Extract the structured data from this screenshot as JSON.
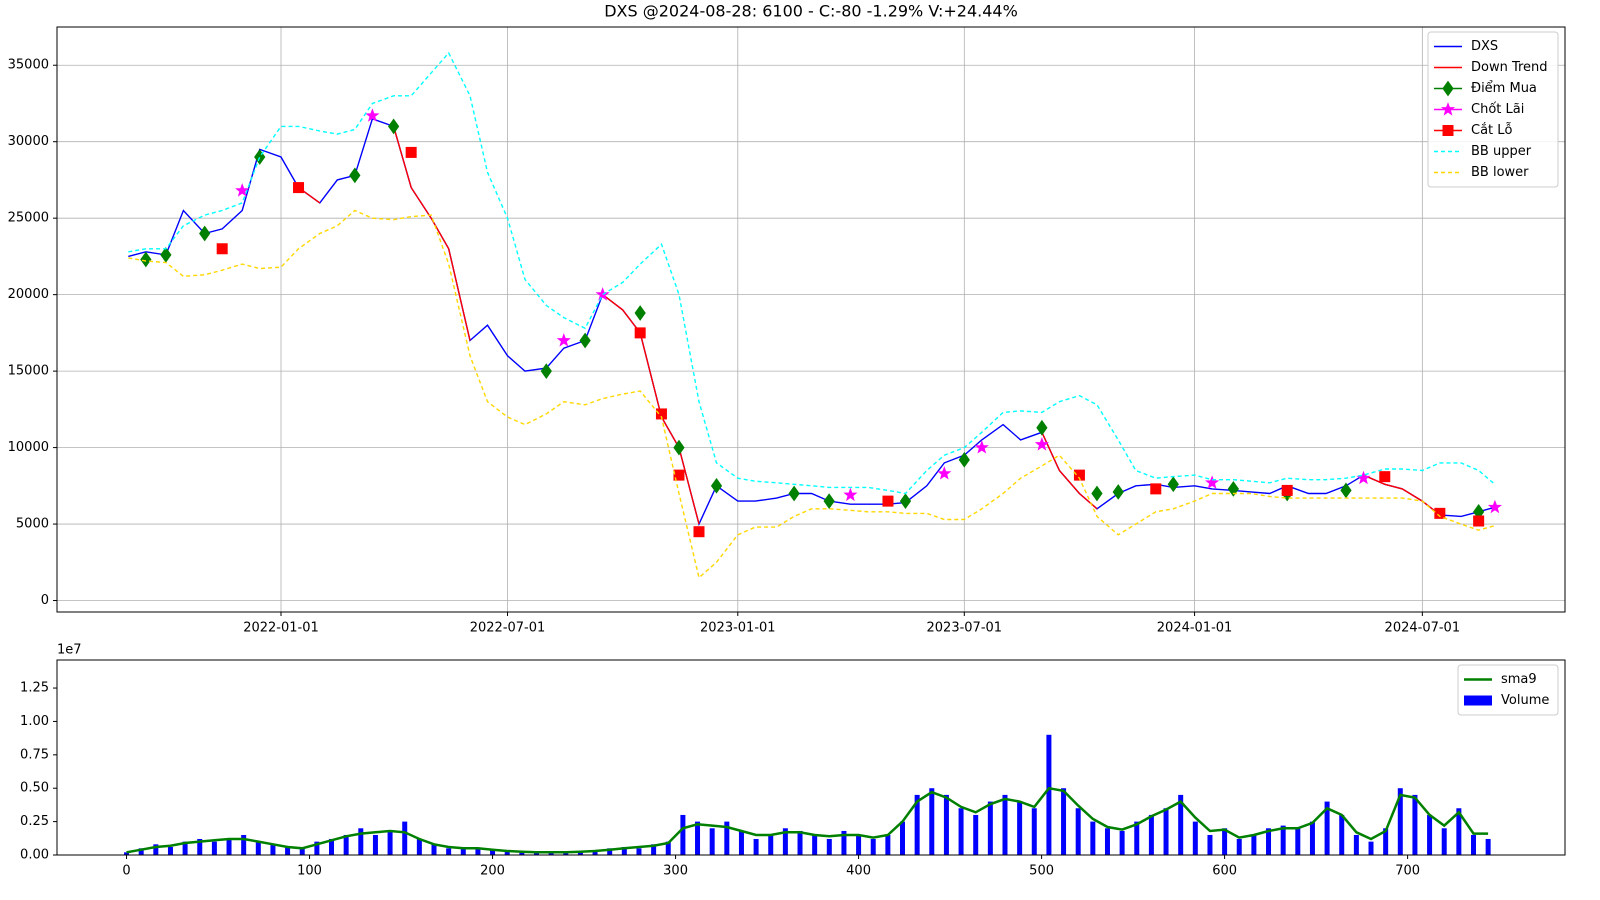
{
  "chart_data": [
    {
      "type": "line",
      "title": "DXS @2024-08-28: 6100 - C:-80 -1.29% V:+24.44%",
      "grid": true,
      "legend": "upper right",
      "xlim": [
        "2021-07-06",
        "2024-10-23"
      ],
      "xticks": [
        "2022-01-01",
        "2022-07-01",
        "2023-01-01",
        "2023-07-01",
        "2024-01-01",
        "2024-07-01"
      ],
      "ylim": [
        -750,
        37500
      ],
      "yticks": [
        0,
        5000,
        10000,
        15000,
        20000,
        25000,
        30000,
        35000
      ],
      "x": [
        "2021-09-01",
        "2021-09-15",
        "2021-10-01",
        "2021-10-15",
        "2021-11-01",
        "2021-11-15",
        "2021-12-01",
        "2021-12-15",
        "2022-01-01",
        "2022-01-15",
        "2022-02-01",
        "2022-02-15",
        "2022-03-01",
        "2022-03-15",
        "2022-04-01",
        "2022-04-15",
        "2022-05-01",
        "2022-05-15",
        "2022-06-01",
        "2022-06-15",
        "2022-07-01",
        "2022-07-15",
        "2022-08-01",
        "2022-08-15",
        "2022-09-01",
        "2022-09-15",
        "2022-10-01",
        "2022-10-15",
        "2022-11-01",
        "2022-11-15",
        "2022-12-01",
        "2022-12-15",
        "2023-01-01",
        "2023-01-15",
        "2023-02-01",
        "2023-02-15",
        "2023-03-01",
        "2023-03-15",
        "2023-04-01",
        "2023-04-15",
        "2023-05-01",
        "2023-05-15",
        "2023-06-01",
        "2023-06-15",
        "2023-07-01",
        "2023-07-15",
        "2023-08-01",
        "2023-08-15",
        "2023-09-01",
        "2023-09-15",
        "2023-10-01",
        "2023-10-15",
        "2023-11-01",
        "2023-11-15",
        "2023-12-01",
        "2023-12-15",
        "2024-01-01",
        "2024-01-15",
        "2024-02-01",
        "2024-02-15",
        "2024-03-01",
        "2024-03-15",
        "2024-04-01",
        "2024-04-15",
        "2024-05-01",
        "2024-05-15",
        "2024-06-01",
        "2024-06-15",
        "2024-07-01",
        "2024-07-15",
        "2024-08-01",
        "2024-08-15",
        "2024-08-28"
      ],
      "series": [
        {
          "name": "DXS",
          "type": "line",
          "color": "#0000ff",
          "linestyle": "solid",
          "values": [
            22500,
            22800,
            22600,
            25500,
            24000,
            24300,
            25500,
            29500,
            29000,
            27000,
            26000,
            27500,
            27800,
            31500,
            31000,
            27000,
            25000,
            23000,
            17000,
            18000,
            16000,
            15000,
            15200,
            16500,
            17000,
            20000,
            19000,
            17500,
            12000,
            10000,
            5000,
            7500,
            6500,
            6500,
            6700,
            7000,
            7000,
            6500,
            6300,
            6300,
            6300,
            6400,
            7500,
            9000,
            9500,
            10500,
            11500,
            10500,
            11000,
            8500,
            7000,
            6000,
            7000,
            7500,
            7600,
            7400,
            7500,
            7300,
            7200,
            7100,
            7000,
            7500,
            7000,
            7000,
            7500,
            8200,
            7600,
            7300,
            6500,
            5600,
            5500,
            5800,
            6100
          ]
        },
        {
          "name": "Down Trend",
          "type": "line",
          "color": "#ff0000",
          "linestyle": "solid",
          "values": [
            null,
            null,
            null,
            null,
            null,
            null,
            null,
            null,
            null,
            27000,
            26000,
            null,
            null,
            null,
            31000,
            27000,
            25000,
            23000,
            17000,
            null,
            null,
            null,
            null,
            null,
            null,
            20000,
            19000,
            17500,
            12000,
            10000,
            5000,
            null,
            null,
            null,
            null,
            null,
            null,
            null,
            null,
            null,
            null,
            null,
            null,
            null,
            null,
            null,
            null,
            null,
            11000,
            8500,
            7000,
            6000,
            null,
            null,
            null,
            null,
            null,
            null,
            null,
            null,
            null,
            null,
            null,
            null,
            null,
            8200,
            7600,
            7300,
            6500,
            5600,
            null,
            null,
            null
          ]
        },
        {
          "name": "Điểm Mua",
          "type": "scatter",
          "color": "#008000",
          "marker": "diamond",
          "x": [
            "2021-09-15",
            "2021-10-01",
            "2021-11-01",
            "2021-12-15",
            "2022-03-01",
            "2022-04-01",
            "2022-08-01",
            "2022-09-01",
            "2022-10-15",
            "2022-11-15",
            "2022-12-15",
            "2023-02-15",
            "2023-03-15",
            "2023-05-15",
            "2023-07-01",
            "2023-09-01",
            "2023-10-15",
            "2023-11-01",
            "2023-12-15",
            "2024-02-01",
            "2024-03-15",
            "2024-05-01",
            "2024-08-15"
          ],
          "values": [
            22300,
            22600,
            24000,
            29000,
            27800,
            31000,
            15000,
            17000,
            18800,
            10000,
            7500,
            7000,
            6500,
            6500,
            9200,
            11300,
            7000,
            7100,
            7600,
            7300,
            7000,
            7200,
            5800
          ]
        },
        {
          "name": "Chốt Lãi",
          "type": "scatter",
          "color": "#ff00ff",
          "marker": "star",
          "x": [
            "2021-12-01",
            "2022-03-15",
            "2022-08-15",
            "2022-09-15",
            "2023-04-01",
            "2023-06-15",
            "2023-07-15",
            "2023-09-01",
            "2024-01-15",
            "2024-05-15",
            "2024-08-28"
          ],
          "values": [
            26800,
            31700,
            17000,
            20000,
            6900,
            8300,
            10000,
            10200,
            7700,
            8000,
            6100
          ]
        },
        {
          "name": "Cắt Lỗ",
          "type": "scatter",
          "color": "#ff0000",
          "marker": "square",
          "x": [
            "2021-11-15",
            "2022-01-15",
            "2022-04-15",
            "2022-10-15",
            "2022-11-01",
            "2022-11-15",
            "2022-12-01",
            "2023-05-01",
            "2023-10-01",
            "2023-12-01",
            "2024-03-15",
            "2024-06-01",
            "2024-07-15",
            "2024-08-15"
          ],
          "values": [
            23000,
            27000,
            29300,
            17500,
            12200,
            8200,
            4500,
            6500,
            8200,
            7300,
            7200,
            8100,
            5700,
            5200
          ]
        },
        {
          "name": "BB upper",
          "type": "line",
          "color": "#00ffff",
          "linestyle": "dashed",
          "values": [
            22800,
            23000,
            23000,
            24500,
            25200,
            25500,
            26000,
            29000,
            31000,
            31000,
            30700,
            30500,
            30800,
            32500,
            33000,
            33000,
            34500,
            35800,
            33000,
            28000,
            25000,
            21000,
            19300,
            18500,
            17800,
            20000,
            20800,
            22000,
            23300,
            20000,
            13000,
            9000,
            8000,
            7800,
            7700,
            7600,
            7500,
            7400,
            7400,
            7400,
            7200,
            7000,
            8500,
            9500,
            10000,
            11000,
            12300,
            12400,
            12300,
            13000,
            13400,
            12800,
            10500,
            8500,
            8000,
            8100,
            8200,
            7900,
            7900,
            7800,
            7700,
            8000,
            7900,
            7900,
            8000,
            8200,
            8600,
            8600,
            8500,
            9000,
            9000,
            8500,
            7600
          ]
        },
        {
          "name": "BB lower",
          "type": "line",
          "color": "#ffd700",
          "linestyle": "dashed",
          "values": [
            22400,
            22200,
            22100,
            21200,
            21300,
            21600,
            22000,
            21700,
            21800,
            23000,
            24000,
            24500,
            25500,
            25000,
            24900,
            25100,
            25200,
            22000,
            16000,
            13000,
            12000,
            11500,
            12200,
            13000,
            12800,
            13200,
            13500,
            13700,
            12000,
            7000,
            1500,
            2500,
            4300,
            4800,
            4800,
            5500,
            6000,
            6000,
            5900,
            5800,
            5800,
            5700,
            5700,
            5300,
            5300,
            6000,
            7000,
            8000,
            8800,
            9500,
            8000,
            5500,
            4300,
            5000,
            5800,
            6000,
            6500,
            7000,
            7000,
            7000,
            6800,
            6700,
            6700,
            6700,
            6700,
            6700,
            6700,
            6700,
            6500,
            5500,
            5000,
            4600,
            4900
          ]
        }
      ]
    },
    {
      "type": "bar",
      "legend": "upper right",
      "y_offset_label": "1e7",
      "xlim": [
        -38,
        786
      ],
      "xticks": [
        0,
        100,
        200,
        300,
        400,
        500,
        600,
        700
      ],
      "ylim": [
        0,
        1.46
      ],
      "yticks": [
        {
          "value": 0,
          "label": "0.00"
        },
        {
          "value": 0.25,
          "label": "0.25"
        },
        {
          "value": 0.5,
          "label": "0.50"
        },
        {
          "value": 0.75,
          "label": "0.75"
        },
        {
          "value": 1,
          "label": "1.00"
        },
        {
          "value": 1.25,
          "label": "1.25"
        }
      ],
      "x": [
        0,
        8,
        16,
        24,
        32,
        40,
        48,
        56,
        64,
        72,
        80,
        88,
        96,
        104,
        112,
        120,
        128,
        136,
        144,
        152,
        160,
        168,
        176,
        184,
        192,
        200,
        208,
        216,
        224,
        232,
        240,
        248,
        256,
        264,
        272,
        280,
        288,
        296,
        304,
        312,
        320,
        328,
        336,
        344,
        352,
        360,
        368,
        376,
        384,
        392,
        400,
        408,
        416,
        424,
        432,
        440,
        448,
        456,
        464,
        472,
        480,
        488,
        496,
        504,
        512,
        520,
        528,
        536,
        544,
        552,
        560,
        568,
        576,
        584,
        592,
        600,
        608,
        616,
        624,
        632,
        640,
        648,
        656,
        664,
        672,
        680,
        688,
        696,
        704,
        712,
        720,
        728,
        736,
        744
      ],
      "series": [
        {
          "name": "sma9",
          "type": "line",
          "color": "#008000",
          "values": [
            0.02,
            0.04,
            0.06,
            0.07,
            0.09,
            0.1,
            0.11,
            0.12,
            0.12,
            0.1,
            0.08,
            0.06,
            0.05,
            0.08,
            0.11,
            0.14,
            0.16,
            0.17,
            0.18,
            0.17,
            0.12,
            0.08,
            0.06,
            0.05,
            0.05,
            0.04,
            0.03,
            0.025,
            0.02,
            0.02,
            0.02,
            0.025,
            0.03,
            0.04,
            0.05,
            0.06,
            0.07,
            0.09,
            0.2,
            0.23,
            0.22,
            0.21,
            0.18,
            0.15,
            0.15,
            0.17,
            0.17,
            0.15,
            0.14,
            0.15,
            0.15,
            0.13,
            0.15,
            0.25,
            0.4,
            0.47,
            0.43,
            0.36,
            0.32,
            0.38,
            0.42,
            0.4,
            0.36,
            0.5,
            0.48,
            0.37,
            0.27,
            0.21,
            0.19,
            0.23,
            0.29,
            0.34,
            0.4,
            0.28,
            0.18,
            0.19,
            0.13,
            0.15,
            0.18,
            0.2,
            0.2,
            0.24,
            0.35,
            0.3,
            0.17,
            0.12,
            0.18,
            0.45,
            0.43,
            0.3,
            0.22,
            0.32,
            0.16,
            0.16
          ]
        },
        {
          "name": "Volume",
          "type": "bar",
          "color": "#0000ff",
          "values": [
            0.02,
            0.05,
            0.08,
            0.06,
            0.1,
            0.12,
            0.1,
            0.12,
            0.15,
            0.1,
            0.08,
            0.06,
            0.05,
            0.1,
            0.12,
            0.15,
            0.2,
            0.15,
            0.18,
            0.25,
            0.12,
            0.08,
            0.05,
            0.06,
            0.05,
            0.04,
            0.03,
            0.02,
            0.02,
            0.02,
            0.02,
            0.03,
            0.03,
            0.05,
            0.06,
            0.05,
            0.08,
            0.1,
            0.3,
            0.25,
            0.2,
            0.25,
            0.18,
            0.12,
            0.15,
            0.2,
            0.18,
            0.15,
            0.12,
            0.18,
            0.15,
            0.12,
            0.15,
            0.25,
            0.45,
            0.5,
            0.45,
            0.35,
            0.3,
            0.4,
            0.45,
            0.4,
            0.35,
            0.9,
            0.5,
            0.35,
            0.25,
            0.2,
            0.18,
            0.25,
            0.3,
            0.35,
            0.45,
            0.25,
            0.15,
            0.2,
            0.12,
            0.15,
            0.2,
            0.22,
            0.2,
            0.25,
            0.4,
            0.3,
            0.15,
            0.1,
            0.2,
            0.5,
            0.45,
            0.3,
            0.2,
            0.35,
            0.15,
            0.12
          ]
        }
      ]
    }
  ]
}
